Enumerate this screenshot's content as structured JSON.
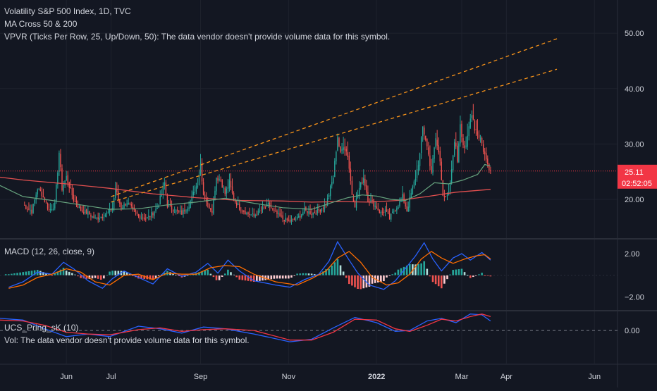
{
  "header": {
    "title": "Volatility S&P 500 Index, 1D, TVC",
    "indicator_ma": "MA Cross 50 & 200",
    "indicator_vpvr": "VPVR (Ticks Per Row, 25, Up/Down, 50): The data vendor doesn't provide volume data for this symbol."
  },
  "price_badge": {
    "value": "25.11",
    "countdown": "02:52:05"
  },
  "colors": {
    "background": "#131722",
    "up": "#26a69a",
    "down": "#ef5350",
    "ma50": "#66a37e",
    "ma200": "#e24f4f",
    "trendline": "#f7931a",
    "macd_line": "#2962ff",
    "signal_line": "#ff6d00",
    "grid": "#1e222d",
    "divider": "#2a2e39",
    "text": "#d1d4dc",
    "price_label": "#f23645"
  },
  "chart_data": [
    {
      "type": "candlestick",
      "title": "Volatility S&P 500 Index, 1D, TVC",
      "yticks": [
        "50.00",
        "40.00",
        "30.00",
        "20.00"
      ],
      "ylim": [
        13,
        56
      ],
      "xticks": [
        "Jun",
        "Jul",
        "Sep",
        "Nov",
        "2022",
        "Mar",
        "Apr",
        "Jun"
      ],
      "xtick_days": [
        30,
        61,
        123,
        184,
        245,
        304,
        335,
        396
      ],
      "xlim": [
        -16,
        412
      ],
      "last_price": 25.11,
      "anchors": [
        [
          0,
          19
        ],
        [
          6,
          17.8
        ],
        [
          10,
          22
        ],
        [
          13,
          21
        ],
        [
          18,
          18
        ],
        [
          22,
          19
        ],
        [
          25,
          28.5
        ],
        [
          27,
          22
        ],
        [
          30,
          24
        ],
        [
          35,
          20
        ],
        [
          40,
          18
        ],
        [
          45,
          17.5
        ],
        [
          50,
          16.5
        ],
        [
          55,
          17
        ],
        [
          60,
          17.8
        ],
        [
          62,
          18.5
        ],
        [
          64,
          22
        ],
        [
          66,
          20
        ],
        [
          68,
          18.5
        ],
        [
          72,
          19.5
        ],
        [
          76,
          18
        ],
        [
          80,
          17
        ],
        [
          85,
          16.5
        ],
        [
          88,
          17
        ],
        [
          93,
          18.5
        ],
        [
          96,
          21
        ],
        [
          98,
          23
        ],
        [
          100,
          19
        ],
        [
          105,
          18
        ],
        [
          110,
          17.5
        ],
        [
          115,
          19
        ],
        [
          118,
          21
        ],
        [
          121,
          23
        ],
        [
          123,
          26.5
        ],
        [
          125,
          21
        ],
        [
          128,
          19
        ],
        [
          131,
          18
        ],
        [
          134,
          24
        ],
        [
          137,
          23.5
        ],
        [
          140,
          21
        ],
        [
          143,
          23
        ],
        [
          146,
          20
        ],
        [
          150,
          18.5
        ],
        [
          155,
          17.5
        ],
        [
          160,
          17
        ],
        [
          165,
          18
        ],
        [
          170,
          19
        ],
        [
          175,
          17.5
        ],
        [
          180,
          16.5
        ],
        [
          185,
          16
        ],
        [
          190,
          16.5
        ],
        [
          195,
          18
        ],
        [
          200,
          17.5
        ],
        [
          205,
          18
        ],
        [
          210,
          19
        ],
        [
          215,
          24
        ],
        [
          218,
          31.5
        ],
        [
          220,
          28
        ],
        [
          222,
          30
        ],
        [
          225,
          28
        ],
        [
          228,
          21
        ],
        [
          230,
          19
        ],
        [
          233,
          22
        ],
        [
          236,
          24
        ],
        [
          239,
          20
        ],
        [
          242,
          19.5
        ],
        [
          245,
          18.5
        ],
        [
          248,
          17.5
        ],
        [
          251,
          18
        ],
        [
          254,
          16.5
        ],
        [
          257,
          18
        ],
        [
          260,
          19
        ],
        [
          263,
          20.5
        ],
        [
          266,
          18
        ],
        [
          269,
          21
        ],
        [
          272,
          24
        ],
        [
          275,
          28
        ],
        [
          277,
          33
        ],
        [
          279,
          31
        ],
        [
          281,
          28
        ],
        [
          283,
          25
        ],
        [
          286,
          31
        ],
        [
          289,
          27
        ],
        [
          291,
          21
        ],
        [
          293,
          20
        ],
        [
          295,
          21
        ],
        [
          297,
          25
        ],
        [
          299,
          31
        ],
        [
          301,
          27
        ],
        [
          303,
          34
        ],
        [
          305,
          30
        ],
        [
          307,
          29
        ],
        [
          309,
          33
        ],
        [
          311,
          36
        ],
        [
          313,
          33
        ],
        [
          315,
          32
        ],
        [
          317,
          31
        ],
        [
          319,
          29
        ],
        [
          321,
          27
        ],
        [
          324,
          25.11
        ]
      ],
      "ma50": [
        [
          -16,
          22.5
        ],
        [
          0,
          20.5
        ],
        [
          20,
          19.8
        ],
        [
          40,
          19
        ],
        [
          60,
          18.2
        ],
        [
          80,
          18.3
        ],
        [
          100,
          19
        ],
        [
          120,
          19.5
        ],
        [
          140,
          20.2
        ],
        [
          160,
          19.3
        ],
        [
          180,
          18.5
        ],
        [
          200,
          18.2
        ],
        [
          215,
          19.5
        ],
        [
          225,
          20.3
        ],
        [
          235,
          20.8
        ],
        [
          245,
          20.6
        ],
        [
          255,
          20
        ],
        [
          265,
          19.8
        ],
        [
          275,
          21
        ],
        [
          285,
          23
        ],
        [
          295,
          22.8
        ],
        [
          305,
          23.5
        ],
        [
          315,
          24.5
        ],
        [
          320,
          26.3
        ],
        [
          324,
          26
        ]
      ],
      "ma200": [
        [
          -16,
          24
        ],
        [
          0,
          23.5
        ],
        [
          30,
          22.8
        ],
        [
          60,
          22
        ],
        [
          90,
          21
        ],
        [
          120,
          20.3
        ],
        [
          150,
          19.8
        ],
        [
          180,
          19.7
        ],
        [
          200,
          19.5
        ],
        [
          220,
          19.6
        ],
        [
          240,
          19.5
        ],
        [
          260,
          19.8
        ],
        [
          280,
          20.5
        ],
        [
          300,
          21.3
        ],
        [
          324,
          21.8
        ]
      ],
      "trendlines": [
        {
          "from": [
            61,
            20.5
          ],
          "to": [
            370,
            49
          ]
        },
        {
          "from": [
            61,
            19.5
          ],
          "to": [
            370,
            43.5
          ]
        }
      ],
      "price_line_y": 25.11
    },
    {
      "type": "macd",
      "title": "MACD (12, 26, close, 9)",
      "yticks": [
        "2.00",
        "−2.00"
      ],
      "ylim": [
        -3.2,
        3.3
      ],
      "macd_line": [
        [
          -10,
          -1.1
        ],
        [
          0,
          -0.6
        ],
        [
          10,
          0.3
        ],
        [
          20,
          0.1
        ],
        [
          28,
          1.2
        ],
        [
          35,
          0.6
        ],
        [
          45,
          -0.5
        ],
        [
          55,
          -1.2
        ],
        [
          62,
          -0.3
        ],
        [
          70,
          0.4
        ],
        [
          80,
          -0.2
        ],
        [
          90,
          -0.8
        ],
        [
          100,
          0.6
        ],
        [
          110,
          -0.1
        ],
        [
          120,
          0.3
        ],
        [
          128,
          1.1
        ],
        [
          135,
          0.2
        ],
        [
          142,
          1.4
        ],
        [
          150,
          0.4
        ],
        [
          160,
          -0.5
        ],
        [
          175,
          -0.9
        ],
        [
          185,
          -1.1
        ],
        [
          195,
          -0.4
        ],
        [
          205,
          0.1
        ],
        [
          212,
          1.3
        ],
        [
          218,
          3.1
        ],
        [
          225,
          1.6
        ],
        [
          232,
          0.2
        ],
        [
          240,
          -0.9
        ],
        [
          250,
          -1.3
        ],
        [
          258,
          -0.5
        ],
        [
          266,
          0.8
        ],
        [
          272,
          1.8
        ],
        [
          278,
          3.0
        ],
        [
          284,
          1.5
        ],
        [
          290,
          0.4
        ],
        [
          298,
          1.6
        ],
        [
          304,
          2.0
        ],
        [
          310,
          1.4
        ],
        [
          318,
          2.1
        ],
        [
          324,
          1.4
        ]
      ],
      "signal_line": [
        [
          -10,
          -1.2
        ],
        [
          0,
          -0.9
        ],
        [
          10,
          -0.2
        ],
        [
          20,
          0.1
        ],
        [
          30,
          0.6
        ],
        [
          40,
          0.3
        ],
        [
          50,
          -0.6
        ],
        [
          60,
          -0.9
        ],
        [
          70,
          0
        ],
        [
          80,
          0.1
        ],
        [
          90,
          -0.4
        ],
        [
          100,
          0.2
        ],
        [
          110,
          0.1
        ],
        [
          120,
          0.1
        ],
        [
          130,
          0.7
        ],
        [
          140,
          0.9
        ],
        [
          150,
          0.8
        ],
        [
          160,
          0.1
        ],
        [
          175,
          -0.6
        ],
        [
          190,
          -0.9
        ],
        [
          200,
          -0.3
        ],
        [
          210,
          0.4
        ],
        [
          218,
          1.6
        ],
        [
          226,
          2.2
        ],
        [
          234,
          1.2
        ],
        [
          242,
          -0.2
        ],
        [
          252,
          -0.9
        ],
        [
          260,
          -0.7
        ],
        [
          268,
          0.1
        ],
        [
          276,
          1.5
        ],
        [
          283,
          2.2
        ],
        [
          290,
          1.6
        ],
        [
          298,
          1.1
        ],
        [
          306,
          1.5
        ],
        [
          314,
          1.8
        ],
        [
          320,
          1.9
        ],
        [
          324,
          1.5
        ]
      ]
    },
    {
      "type": "line",
      "title": "UCS_Pring_sK (10)",
      "subtitle": "Vol: The data vendor doesn't provide volume data for this symbol.",
      "yticks": [
        "0.00"
      ],
      "ylim": [
        -1.9,
        1.1
      ],
      "series": [
        {
          "name": "",
          "color": "#2962ff",
          "points": [
            [
              -16,
              0.7
            ],
            [
              0,
              0.6
            ],
            [
              15,
              0.1
            ],
            [
              30,
              -0.35
            ],
            [
              45,
              -0.2
            ],
            [
              60,
              -0.35
            ],
            [
              80,
              0.25
            ],
            [
              95,
              0.1
            ],
            [
              110,
              -0.15
            ],
            [
              125,
              0.2
            ],
            [
              140,
              0.1
            ],
            [
              160,
              -0.2
            ],
            [
              185,
              -0.65
            ],
            [
              200,
              -0.5
            ],
            [
              215,
              0.15
            ],
            [
              230,
              0.75
            ],
            [
              245,
              0.45
            ],
            [
              258,
              -0.05
            ],
            [
              268,
              0
            ],
            [
              280,
              0.55
            ],
            [
              290,
              0.7
            ],
            [
              300,
              0.45
            ],
            [
              310,
              0.95
            ],
            [
              318,
              0.9
            ],
            [
              324,
              0.55
            ]
          ]
        },
        {
          "name": "",
          "color": "#f23645",
          "points": [
            [
              -16,
              0.6
            ],
            [
              0,
              0.55
            ],
            [
              15,
              0.3
            ],
            [
              30,
              -0.1
            ],
            [
              45,
              -0.2
            ],
            [
              60,
              -0.25
            ],
            [
              80,
              0.05
            ],
            [
              95,
              0.15
            ],
            [
              110,
              -0.05
            ],
            [
              125,
              0.05
            ],
            [
              140,
              0.1
            ],
            [
              160,
              0
            ],
            [
              185,
              -0.55
            ],
            [
              200,
              -0.55
            ],
            [
              215,
              -0.1
            ],
            [
              230,
              0.65
            ],
            [
              245,
              0.6
            ],
            [
              258,
              0.1
            ],
            [
              268,
              -0.05
            ],
            [
              280,
              0.3
            ],
            [
              290,
              0.65
            ],
            [
              300,
              0.55
            ],
            [
              310,
              0.8
            ],
            [
              318,
              0.95
            ],
            [
              324,
              0.8
            ]
          ]
        }
      ]
    }
  ]
}
